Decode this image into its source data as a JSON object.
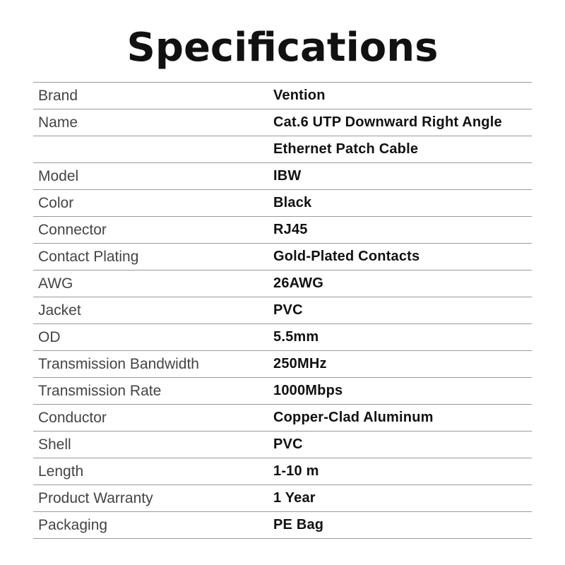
{
  "title": "Specifications",
  "rows": [
    {
      "label": "Brand",
      "value": "Vention"
    },
    {
      "label": "Name",
      "value": "Cat.6 UTP Downward Right Angle"
    },
    {
      "label": "",
      "value": "Ethernet Patch Cable"
    },
    {
      "label": "Model",
      "value": "IBW"
    },
    {
      "label": "Color",
      "value": "Black"
    },
    {
      "label": "Connector",
      "value": "RJ45"
    },
    {
      "label": "Contact Plating",
      "value": "Gold-Plated Contacts"
    },
    {
      "label": "AWG",
      "value": "26AWG"
    },
    {
      "label": "Jacket",
      "value": "PVC"
    },
    {
      "label": "OD",
      "value": "5.5mm"
    },
    {
      "label": "Transmission Bandwidth",
      "value": "250MHz"
    },
    {
      "label": "Transmission Rate",
      "value": "1000Mbps"
    },
    {
      "label": "Conductor",
      "value": "Copper-Clad Aluminum"
    },
    {
      "label": "Shell",
      "value": "PVC"
    },
    {
      "label": "Length",
      "value": "1-10 m"
    },
    {
      "label": "Product Warranty",
      "value": "1 Year"
    },
    {
      "label": "Packaging",
      "value": "PE Bag"
    }
  ]
}
